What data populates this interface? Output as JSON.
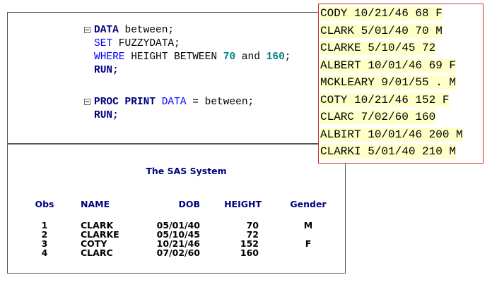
{
  "code": {
    "blocks": [
      {
        "lines": [
          {
            "marker": true,
            "tokens": [
              {
                "text": "DATA",
                "color": "#000080",
                "bold": true
              },
              {
                "text": " between;",
                "color": "#000000",
                "bold": false
              }
            ]
          },
          {
            "marker": false,
            "tokens": [
              {
                "text": "SET",
                "color": "#0000ff",
                "bold": false
              },
              {
                "text": " FUZZYDATA;",
                "color": "#000000",
                "bold": false
              }
            ]
          },
          {
            "marker": false,
            "tokens": [
              {
                "text": "WHERE",
                "color": "#0000ff",
                "bold": false
              },
              {
                "text": " HEIGHT BETWEEN ",
                "color": "#000000",
                "bold": false
              },
              {
                "text": "70",
                "color": "#008080",
                "bold": true
              },
              {
                "text": " and ",
                "color": "#000000",
                "bold": false
              },
              {
                "text": "160",
                "color": "#008080",
                "bold": true
              },
              {
                "text": ";",
                "color": "#000000",
                "bold": false
              }
            ]
          },
          {
            "marker": false,
            "tokens": [
              {
                "text": "RUN;",
                "color": "#000080",
                "bold": true
              }
            ]
          }
        ]
      },
      {
        "lines": [
          {
            "marker": true,
            "tokens": [
              {
                "text": "PROC PRINT",
                "color": "#000080",
                "bold": true
              },
              {
                "text": " DATA",
                "color": "#0000ff",
                "bold": false
              },
              {
                "text": " = between;",
                "color": "#000000",
                "bold": false
              }
            ]
          },
          {
            "marker": false,
            "tokens": [
              {
                "text": "RUN;",
                "color": "#000080",
                "bold": true
              }
            ]
          }
        ]
      }
    ]
  },
  "raw_data": {
    "lines": [
      "CODY 10/21/46 68 F",
      "CLARK 5/01/40 70 M",
      "CLARKE 5/10/45 72",
      "ALBERT 10/01/46 69 F",
      "MCKLEARY 9/01/55 . M",
      "COTY 10/21/46 152 F",
      "CLARC 7/02/60 160",
      "ALBIRT 10/01/46 200 M",
      "CLARKI 5/01/40 210 M"
    ]
  },
  "output": {
    "title": "The SAS System",
    "headers": [
      "Obs",
      "NAME",
      "DOB",
      "HEIGHT",
      "Gender"
    ],
    "rows": [
      [
        "1",
        "CLARK",
        "05/01/40",
        "70",
        "M"
      ],
      [
        "2",
        "CLARKE",
        "05/10/45",
        "72",
        null
      ],
      [
        "3",
        "COTY",
        "10/21/46",
        "152",
        "F"
      ],
      [
        "4",
        "CLARC",
        "07/02/60",
        "160",
        null
      ]
    ]
  }
}
